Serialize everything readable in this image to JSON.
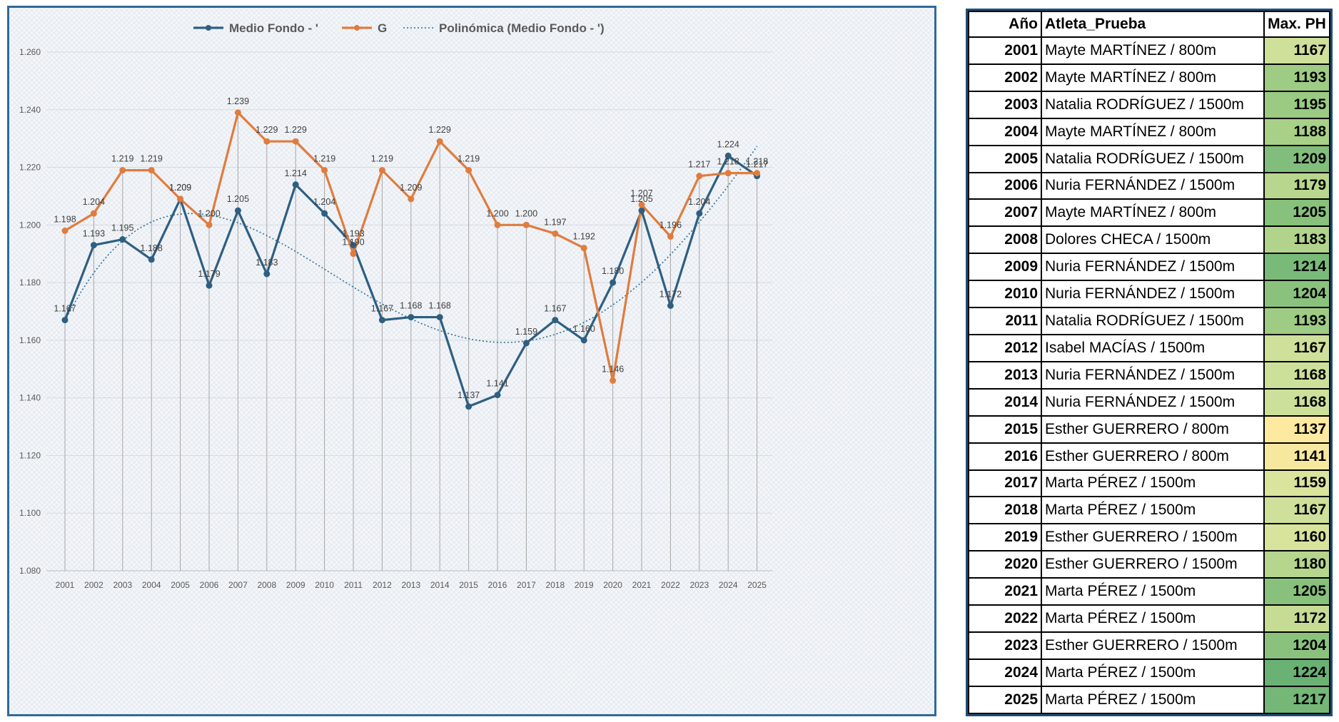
{
  "chart_data": {
    "type": "line",
    "categories": [
      "2001",
      "2002",
      "2003",
      "2004",
      "2005",
      "2006",
      "2007",
      "2008",
      "2009",
      "2010",
      "2011",
      "2012",
      "2013",
      "2014",
      "2015",
      "2016",
      "2017",
      "2018",
      "2019",
      "2020",
      "2021",
      "2022",
      "2023",
      "2024",
      "2025"
    ],
    "series": [
      {
        "name": "Medio Fondo - '",
        "color": "#2e5f82",
        "style": "solid-markers",
        "values": [
          1167,
          1193,
          1195,
          1188,
          1209,
          1179,
          1205,
          1183,
          1214,
          1204,
          1193,
          1167,
          1168,
          1168,
          1137,
          1141,
          1159,
          1167,
          1160,
          1180,
          1205,
          1172,
          1204,
          1224,
          1217
        ],
        "labels": [
          "1.167",
          "1.193",
          "1.195",
          "1.188",
          "1.209",
          "1.179",
          "1.205",
          "1.183",
          "1.214",
          "1.204",
          "1.193",
          "1.167",
          "1.168",
          "1.168",
          "1.137",
          "1.141",
          "1.159",
          "1.167",
          "1.160",
          "1.180",
          "1.205",
          "1.172",
          "1.204",
          "1.224",
          "1.217"
        ]
      },
      {
        "name": "G",
        "color": "#e07c3e",
        "style": "solid-markers",
        "values": [
          1198,
          1204,
          1219,
          1219,
          1209,
          1200,
          1239,
          1229,
          1229,
          1219,
          1190,
          1219,
          1209,
          1229,
          1219,
          1200,
          1200,
          1197,
          1192,
          1146,
          1207,
          1196,
          1217,
          1218,
          1218
        ],
        "labels": [
          "1.198",
          "1.204",
          "1.219",
          "1.219",
          "1.209",
          "1.200",
          "1.239",
          "1.229",
          "1.229",
          "1.219",
          "1.190",
          "1.219",
          "1.209",
          "1.229",
          "1.219",
          "1.200",
          "1.200",
          "1.197",
          "1.192",
          "1.146",
          "1.207",
          "1.196",
          "1.217",
          "1.218",
          "1.218"
        ]
      }
    ],
    "trendline": {
      "name": "Polinómica (Medio Fondo - ')",
      "color": "#2e6f96",
      "style": "dotted",
      "type": "polynomial",
      "fits_series": "Medio Fondo - '"
    },
    "y_axis": {
      "min": 1080,
      "max": 1260,
      "step": 20,
      "tick_labels": [
        "1.080",
        "1.100",
        "1.120",
        "1.140",
        "1.160",
        "1.180",
        "1.200",
        "1.220",
        "1.240",
        "1.260"
      ]
    },
    "xlabel": "",
    "ylabel": "",
    "legend_position": "top-center",
    "grid": {
      "horizontal": true,
      "vertical_drop_lines": true
    }
  },
  "table": {
    "headers": {
      "year": "Año",
      "athlete": "Atleta_Prueba",
      "max": "Max. PH"
    },
    "rows": [
      {
        "year": "2001",
        "athlete": "Mayte MARTÍNEZ / 800m",
        "max": "1167",
        "color": "#cfe09a"
      },
      {
        "year": "2002",
        "athlete": "Mayte MARTÍNEZ / 800m",
        "max": "1193",
        "color": "#9fcc84"
      },
      {
        "year": "2003",
        "athlete": "Natalia RODRÍGUEZ / 1500m",
        "max": "1195",
        "color": "#9bca83"
      },
      {
        "year": "2004",
        "athlete": "Mayte MARTÍNEZ / 800m",
        "max": "1188",
        "color": "#a8d087"
      },
      {
        "year": "2005",
        "athlete": "Natalia RODRÍGUEZ / 1500m",
        "max": "1209",
        "color": "#82be7b"
      },
      {
        "year": "2006",
        "athlete": "Nuria FERNÁNDEZ / 1500m",
        "max": "1179",
        "color": "#b8d68e"
      },
      {
        "year": "2007",
        "athlete": "Mayte MARTÍNEZ / 800m",
        "max": "1205",
        "color": "#88c17c"
      },
      {
        "year": "2008",
        "athlete": "Dolores CHECA / 1500m",
        "max": "1183",
        "color": "#b2d38b"
      },
      {
        "year": "2009",
        "athlete": "Nuria FERNÁNDEZ / 1500m",
        "max": "1214",
        "color": "#79ba79"
      },
      {
        "year": "2010",
        "athlete": "Nuria FERNÁNDEZ / 1500m",
        "max": "1204",
        "color": "#8ac27d"
      },
      {
        "year": "2011",
        "athlete": "Natalia RODRÍGUEZ / 1500m",
        "max": "1193",
        "color": "#9fcc84"
      },
      {
        "year": "2012",
        "athlete": "Isabel MACÍAS / 1500m",
        "max": "1167",
        "color": "#cfe09a"
      },
      {
        "year": "2013",
        "athlete": "Nuria FERNÁNDEZ / 1500m",
        "max": "1168",
        "color": "#cde09a"
      },
      {
        "year": "2014",
        "athlete": "Nuria FERNÁNDEZ / 1500m",
        "max": "1168",
        "color": "#cde09a"
      },
      {
        "year": "2015",
        "athlete": "Esther GUERRERO / 800m",
        "max": "1137",
        "color": "#fde9a0"
      },
      {
        "year": "2016",
        "athlete": "Esther GUERRERO / 800m",
        "max": "1141",
        "color": "#f7e8a0"
      },
      {
        "year": "2017",
        "athlete": "Marta PÉREZ / 1500m",
        "max": "1159",
        "color": "#dae49c"
      },
      {
        "year": "2018",
        "athlete": "Marta PÉREZ / 1500m",
        "max": "1167",
        "color": "#cfe09a"
      },
      {
        "year": "2019",
        "athlete": "Esther GUERRERO / 1500m",
        "max": "1160",
        "color": "#d8e39c"
      },
      {
        "year": "2020",
        "athlete": "Esther GUERRERO / 1500m",
        "max": "1180",
        "color": "#b6d58d"
      },
      {
        "year": "2021",
        "athlete": "Marta PÉREZ / 1500m",
        "max": "1205",
        "color": "#88c17c"
      },
      {
        "year": "2022",
        "athlete": "Marta PÉREZ / 1500m",
        "max": "1172",
        "color": "#c6dc95"
      },
      {
        "year": "2023",
        "athlete": "Esther GUERRERO / 1500m",
        "max": "1204",
        "color": "#8ac27d"
      },
      {
        "year": "2024",
        "athlete": "Marta PÉREZ / 1500m",
        "max": "1224",
        "color": "#69b274"
      },
      {
        "year": "2025",
        "athlete": "Marta PÉREZ / 1500m",
        "max": "1217",
        "color": "#74b777"
      }
    ]
  }
}
